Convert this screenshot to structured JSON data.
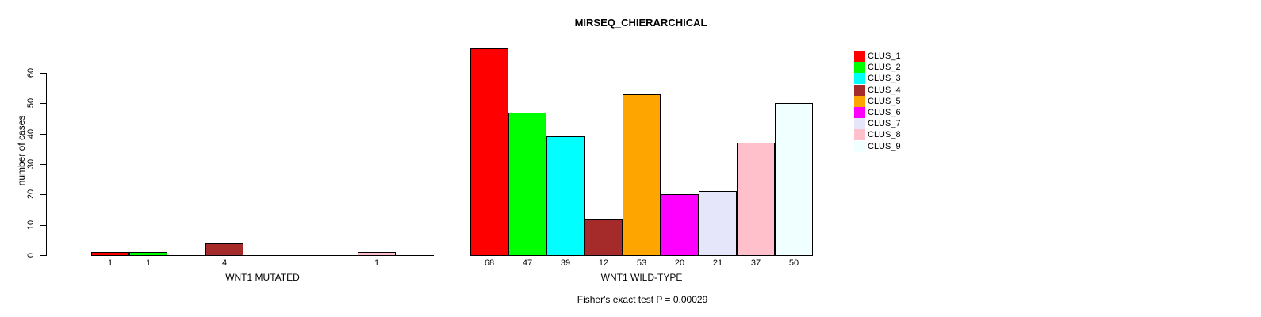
{
  "title": "MIRSEQ_CHIERARCHICAL",
  "footer": "Fisher's exact test P = 0.00029",
  "y_axis": {
    "label": "number of cases",
    "ticks": [
      0,
      10,
      20,
      30,
      40,
      50,
      60
    ]
  },
  "legend": {
    "position": "right",
    "entries": [
      {
        "label": "CLUS_1",
        "color": "#FF0000"
      },
      {
        "label": "CLUS_2",
        "color": "#00FF00"
      },
      {
        "label": "CLUS_3",
        "color": "#00FFFF"
      },
      {
        "label": "CLUS_4",
        "color": "#A52A2A"
      },
      {
        "label": "CLUS_5",
        "color": "#FFA500"
      },
      {
        "label": "CLUS_6",
        "color": "#FF00FF"
      },
      {
        "label": "CLUS_7",
        "color": "#E6E6FA"
      },
      {
        "label": "CLUS_8",
        "color": "#FFC0CB"
      },
      {
        "label": "CLUS_9",
        "color": "#F0FFFF"
      }
    ]
  },
  "chart_data": [
    {
      "type": "bar",
      "title": "MIRSEQ_CHIERARCHICAL",
      "xlabel": "WNT1 MUTATED",
      "ylabel": "number of cases",
      "categories": [
        "CLUS_1",
        "CLUS_2",
        "CLUS_3",
        "CLUS_4",
        "CLUS_5",
        "CLUS_6",
        "CLUS_7",
        "CLUS_8",
        "CLUS_9"
      ],
      "values": [
        1,
        1,
        0,
        4,
        0,
        0,
        0,
        1,
        0
      ],
      "bar_labels": [
        "1",
        "1",
        "",
        "4",
        "",
        "",
        "",
        "1",
        ""
      ],
      "colors": [
        "#FF0000",
        "#00FF00",
        "#00FFFF",
        "#A52A2A",
        "#FFA500",
        "#FF00FF",
        "#E6E6FA",
        "#FFC0CB",
        "#F0FFFF"
      ],
      "ylim": [
        0,
        68
      ],
      "yticks": [
        0,
        10,
        20,
        30,
        40,
        50,
        60
      ],
      "grid": false,
      "legend_position": "right"
    },
    {
      "type": "bar",
      "title": "",
      "xlabel": "WNT1 WILD-TYPE",
      "ylabel": "",
      "categories": [
        "CLUS_1",
        "CLUS_2",
        "CLUS_3",
        "CLUS_4",
        "CLUS_5",
        "CLUS_6",
        "CLUS_7",
        "CLUS_8",
        "CLUS_9"
      ],
      "values": [
        68,
        47,
        39,
        12,
        53,
        20,
        21,
        37,
        50
      ],
      "bar_labels": [
        "68",
        "47",
        "39",
        "12",
        "53",
        "20",
        "21",
        "37",
        "50"
      ],
      "colors": [
        "#FF0000",
        "#00FF00",
        "#00FFFF",
        "#A52A2A",
        "#FFA500",
        "#FF00FF",
        "#E6E6FA",
        "#FFC0CB",
        "#F0FFFF"
      ],
      "ylim": [
        0,
        68
      ],
      "yticks": [
        0,
        10,
        20,
        30,
        40,
        50,
        60
      ],
      "grid": false
    }
  ]
}
